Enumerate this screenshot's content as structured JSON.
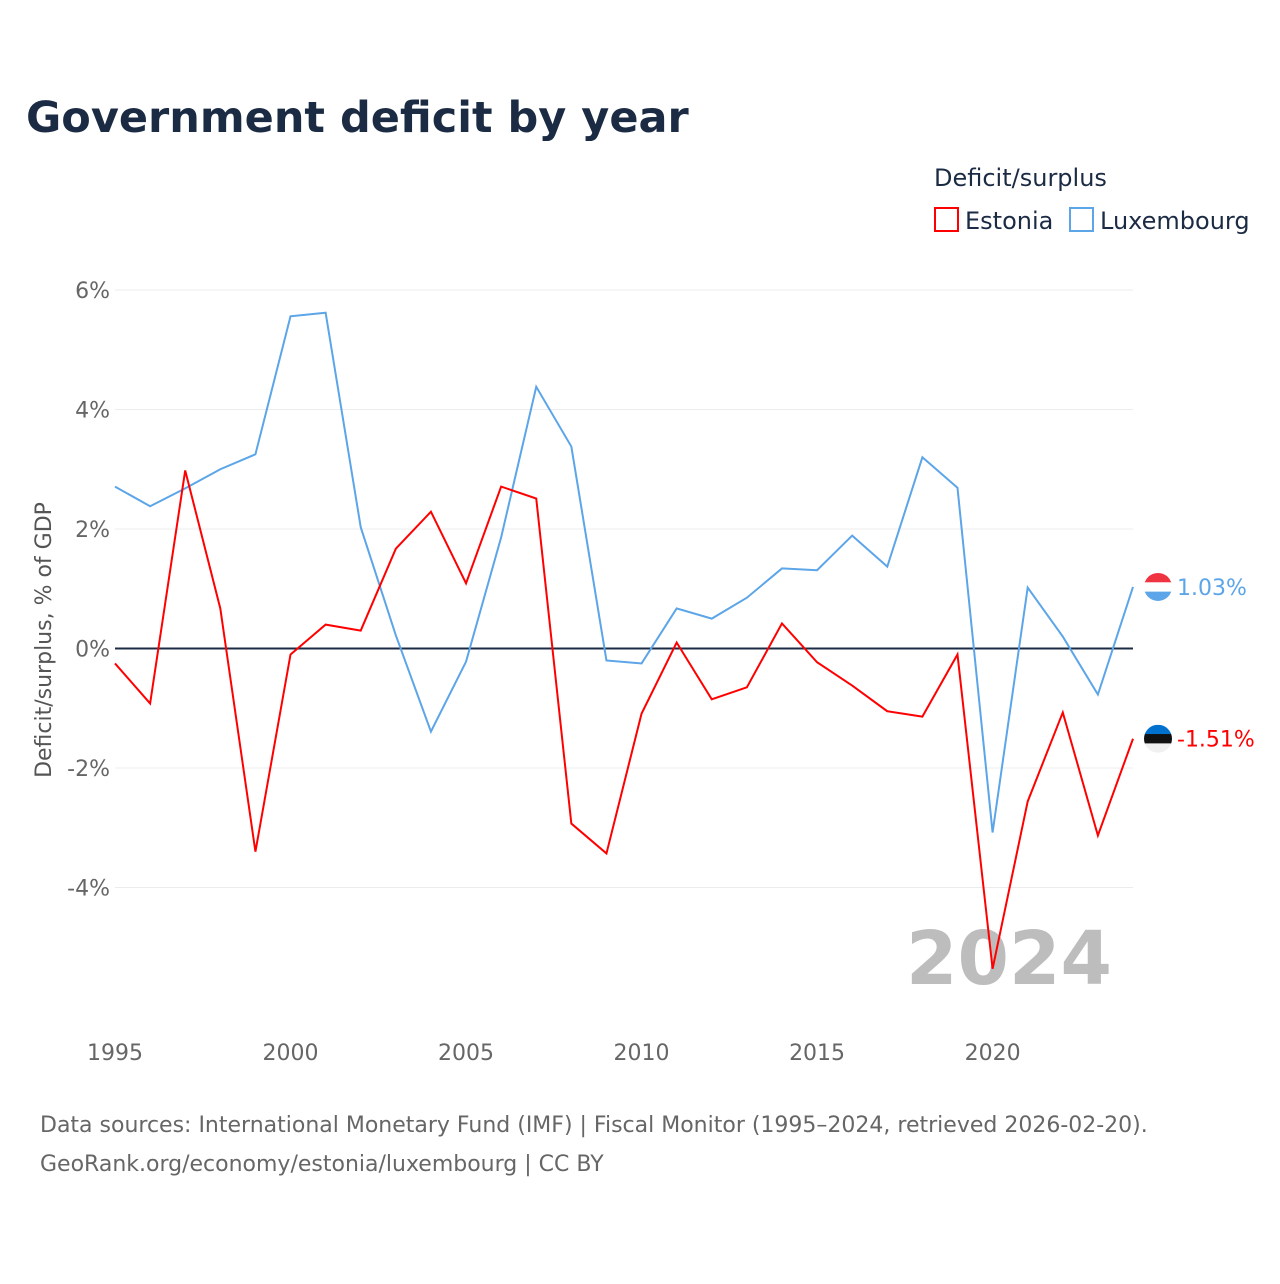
{
  "chart_data": {
    "type": "line",
    "title": "Government deficit by year",
    "xlabel": "",
    "ylabel": "Deficit/surplus, % of GDP",
    "xlim": [
      1995,
      2024
    ],
    "ylim": [
      -6,
      6
    ],
    "yticks": [
      -4,
      -2,
      0,
      2,
      4,
      6
    ],
    "ytick_labels": [
      "-4%",
      "-2%",
      "0%",
      "2%",
      "4%",
      "6%"
    ],
    "xticks": [
      1995,
      2000,
      2005,
      2010,
      2015,
      2020
    ],
    "xtick_labels": [
      "1995",
      "2000",
      "2005",
      "2010",
      "2015",
      "2020"
    ],
    "grid": true,
    "legend": {
      "title": "Deficit/surplus",
      "placement": "top-right"
    },
    "watermark_year": "2024",
    "x": [
      1995,
      1996,
      1997,
      1998,
      1999,
      2000,
      2001,
      2002,
      2003,
      2004,
      2005,
      2006,
      2007,
      2008,
      2009,
      2010,
      2011,
      2012,
      2013,
      2014,
      2015,
      2016,
      2017,
      2018,
      2019,
      2020,
      2021,
      2022,
      2023,
      2024
    ],
    "series": [
      {
        "name": "Estonia",
        "color": "#ff0000",
        "end_label": "-1.51%",
        "values": [
          -0.25,
          -0.92,
          2.98,
          0.67,
          -3.4,
          -0.1,
          0.4,
          0.3,
          1.67,
          2.29,
          1.09,
          2.71,
          2.51,
          -2.93,
          -3.43,
          -1.09,
          0.1,
          -0.85,
          -0.65,
          0.42,
          -0.23,
          -0.62,
          -1.05,
          -1.14,
          -0.1,
          -5.36,
          -2.56,
          -1.07,
          -3.13,
          -1.51
        ]
      },
      {
        "name": "Luxembourg",
        "color": "#5ca5e8",
        "end_label": "1.03%",
        "values": [
          2.71,
          2.38,
          2.68,
          3.0,
          3.25,
          5.56,
          5.62,
          2.03,
          0.22,
          -1.39,
          -0.22,
          1.86,
          4.38,
          3.38,
          -0.2,
          -0.25,
          0.67,
          0.5,
          0.85,
          1.34,
          1.31,
          1.89,
          1.37,
          3.2,
          2.69,
          -3.08,
          1.02,
          0.2,
          -0.77,
          1.03
        ]
      }
    ]
  },
  "footer": {
    "line1": "Data sources: International Monetary Fund (IMF) | Fiscal Monitor (1995–2024, retrieved 2026-02-20).",
    "line2": "GeoRank.org/economy/estonia/luxembourg | CC BY"
  }
}
